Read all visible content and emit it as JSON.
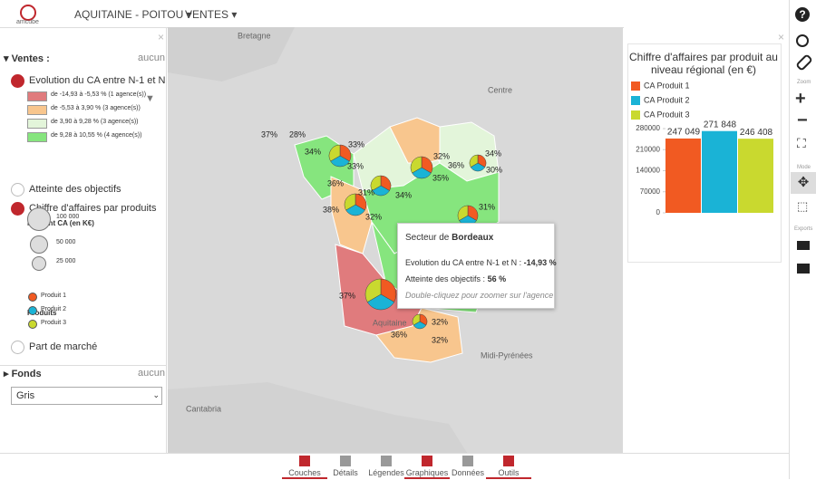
{
  "header": {
    "logo": "amcube",
    "region": "AQUITAINE - POITOU",
    "menu": "VENTES"
  },
  "left_panel": {
    "section": "Ventes :",
    "clear": "aucun",
    "layers": [
      {
        "label": "Evolution du CA entre N-1 et N",
        "classes": [
          {
            "label": "de -14,93 à -5,53 % (1 agence(s))",
            "color": "#e07b7d"
          },
          {
            "label": "de -5,53 à 3,90 % (3 agence(s))",
            "color": "#f8c68e"
          },
          {
            "label": "de 3,90 à 9,28 % (3 agence(s))",
            "color": "#e3f5da"
          },
          {
            "label": "de 9,28 à 10,55 % (4 agence(s))",
            "color": "#86e57e"
          }
        ]
      },
      {
        "label": "Atteinte des objectifs"
      },
      {
        "label": "Chiffre d'affaires par produits",
        "size_title": "Montant CA (en K€)",
        "sizes": [
          "100 000",
          "50 000",
          "25 000"
        ],
        "products_title": "Produits",
        "products": [
          {
            "label": "Produit 1",
            "color": "#f15a22"
          },
          {
            "label": "Produit 2",
            "color": "#1ab3d6"
          },
          {
            "label": "Produit 3",
            "color": "#c9d92f"
          }
        ]
      },
      {
        "label": "Part de marché"
      }
    ],
    "fonds": {
      "title": "Fonds",
      "clear": "aucun",
      "selected": "Gris"
    }
  },
  "map": {
    "places": [
      "Bretagne",
      "Centre",
      "Aquitaine",
      "Midi-Pyrénées",
      "Cantabria"
    ],
    "labels": [
      "37%",
      "28%",
      "34%",
      "33%",
      "33%",
      "36%",
      "31%",
      "34%",
      "32%",
      "35%",
      "36%",
      "34%",
      "30%",
      "38%",
      "31%",
      "32%",
      "37%",
      "32%",
      "36%",
      "32%"
    ]
  },
  "tooltip": {
    "prefix": "Secteur de",
    "name": "Bordeaux",
    "line1": "Evolution du CA entre N-1 et N :",
    "value1": "-14,93 %",
    "line2": "Atteinte des objectifs :",
    "value2": "56 %",
    "hint": "Double-cliquez pour zoomer sur l'agence"
  },
  "chart_data": {
    "type": "bar",
    "title": "Chiffre d'affaires par produit au niveau régional (en €)",
    "categories": [
      null
    ],
    "series": [
      {
        "name": "CA Produit 1",
        "color": "#f15a22",
        "values": [
          247049
        ],
        "value_labels": [
          "247 049"
        ]
      },
      {
        "name": "CA Produit 2",
        "color": "#1ab3d6",
        "values": [
          271848
        ],
        "value_labels": [
          "271 848"
        ]
      },
      {
        "name": "CA Produit 3",
        "color": "#c9d92f",
        "values": [
          246408
        ],
        "value_labels": [
          "246 408"
        ]
      }
    ],
    "ylim": [
      0,
      280000
    ],
    "yticks": [
      0,
      70000,
      140000,
      210000,
      280000
    ]
  },
  "toolbar": {
    "zoom": "Zoom",
    "mode": "Mode",
    "exports": "Exports"
  },
  "tabs": [
    "Couches",
    "Détails",
    "Légendes",
    "Graphiques",
    "Données",
    "Outils"
  ]
}
